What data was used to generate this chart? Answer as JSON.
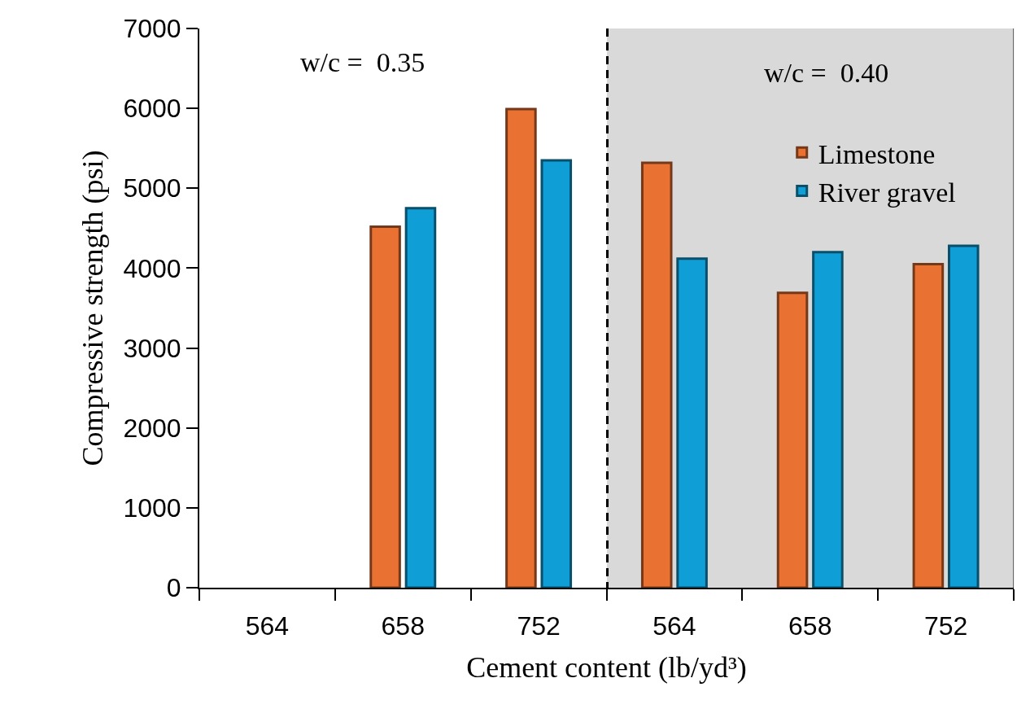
{
  "chart_data": {
    "type": "bar",
    "xlabel": "Cement content (lb/yd³)",
    "ylabel": "Compressive strength (psi)",
    "categories": [
      "564",
      "658",
      "752",
      "564",
      "658",
      "752"
    ],
    "series": [
      {
        "name": "Limestone",
        "color": "#e97132",
        "values": [
          null,
          4520,
          5990,
          5320,
          3690,
          4050
        ]
      },
      {
        "name": "River gravel",
        "color": "#0f9ed5",
        "values": [
          null,
          4750,
          5350,
          4120,
          4200,
          4280
        ]
      }
    ],
    "ylim": [
      0,
      7000
    ],
    "yticks": [
      0,
      1000,
      2000,
      3000,
      4000,
      5000,
      6000,
      7000
    ],
    "grid": false,
    "legend": "top right",
    "annotations": [
      "w/c =  0.35",
      "w/c =  0.40"
    ]
  }
}
